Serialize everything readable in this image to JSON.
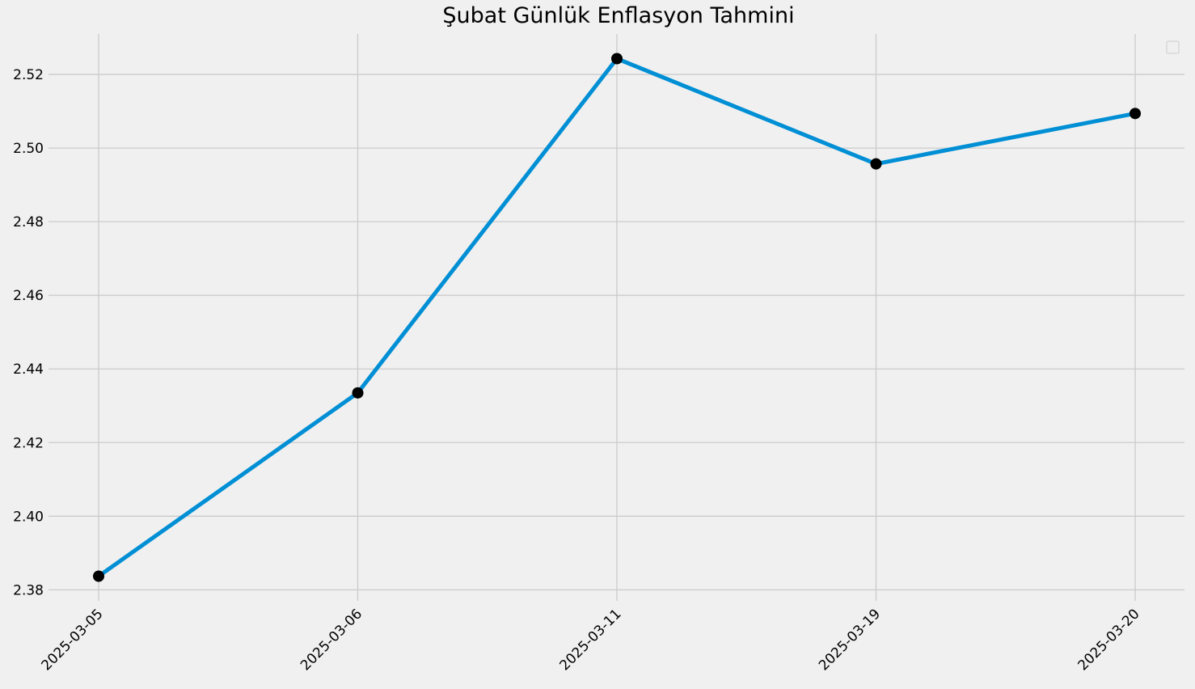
{
  "chart_data": {
    "type": "line",
    "title": "Şubat Günlük Enflasyon Tahmini",
    "xlabel": "",
    "ylabel": "",
    "x": [
      "2025-03-05",
      "2025-03-06",
      "2025-03-11",
      "2025-03-19",
      "2025-03-20"
    ],
    "series": [
      {
        "values": [
          2.3837,
          2.4335,
          2.5243,
          2.4957,
          2.5094
        ],
        "color": "#008fd5",
        "marker_color": "#000000"
      }
    ],
    "ylim": [
      2.377,
      2.531
    ],
    "yticks": [
      2.38,
      2.4,
      2.42,
      2.44,
      2.46,
      2.48,
      2.5,
      2.52
    ],
    "ytick_labels": [
      "2.38",
      "2.40",
      "2.42",
      "2.44",
      "2.46",
      "2.48",
      "2.50",
      "2.52"
    ],
    "x_tick_rotation": 45,
    "grid": true,
    "legend": {
      "placement": "top-right",
      "entries": []
    },
    "colors": {
      "background": "#f0f0f0",
      "grid": "#cbcbcb"
    }
  }
}
